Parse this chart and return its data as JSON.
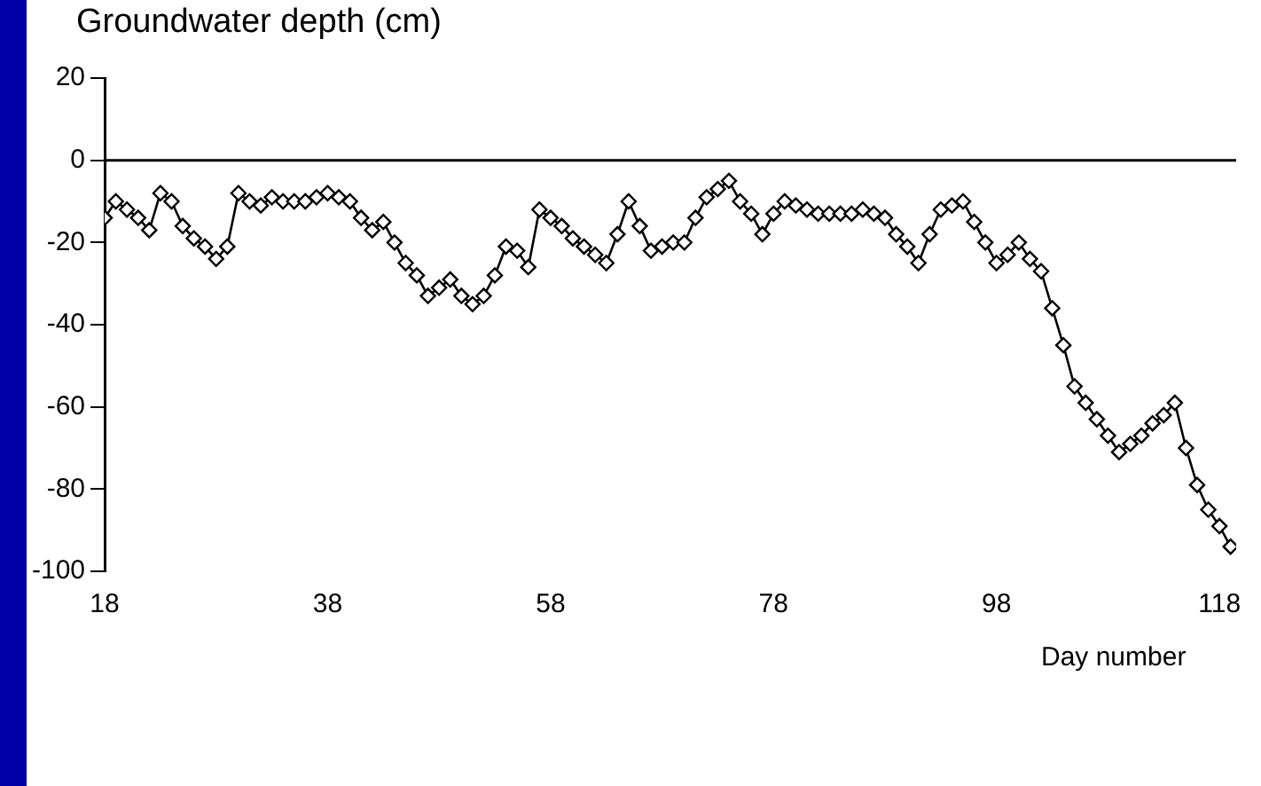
{
  "chart_data": {
    "type": "line",
    "ylabel": "Groundwater depth (cm)",
    "xlabel": "Day number",
    "x": [
      18,
      19,
      20,
      21,
      22,
      23,
      24,
      25,
      26,
      27,
      28,
      29,
      30,
      31,
      32,
      33,
      34,
      35,
      36,
      37,
      38,
      39,
      40,
      41,
      42,
      43,
      44,
      45,
      46,
      47,
      48,
      49,
      50,
      51,
      52,
      53,
      54,
      55,
      56,
      57,
      58,
      59,
      60,
      61,
      62,
      63,
      64,
      65,
      66,
      67,
      68,
      69,
      70,
      71,
      72,
      73,
      74,
      75,
      76,
      77,
      78,
      79,
      80,
      81,
      82,
      83,
      84,
      85,
      86,
      87,
      88,
      89,
      90,
      91,
      92,
      93,
      94,
      95,
      96,
      97,
      98,
      99,
      100,
      101,
      102,
      103,
      104,
      105,
      106,
      107,
      108,
      109,
      110,
      111,
      112,
      113,
      114,
      115,
      116,
      117,
      118,
      119
    ],
    "series": [
      {
        "color": "#000000",
        "values": [
          -14,
          -10,
          -12,
          -14,
          -17,
          -8,
          -10,
          -16,
          -19,
          -21,
          -24,
          -21,
          -8,
          -10,
          -11,
          -9,
          -10,
          -10,
          -10,
          -9,
          -8,
          -9,
          -10,
          -14,
          -17,
          -15,
          -20,
          -25,
          -28,
          -33,
          -31,
          -29,
          -33,
          -35,
          -33,
          -28,
          -21,
          -22,
          -26,
          -12,
          -14,
          -16,
          -19,
          -21,
          -23,
          -25,
          -18,
          -10,
          -16,
          -22,
          -21,
          -20,
          -20,
          -14,
          -9,
          -7,
          -5,
          -10,
          -13,
          -18,
          -13,
          -10,
          -11,
          -12,
          -13,
          -13,
          -13,
          -13,
          -12,
          -13,
          -14,
          -18,
          -21,
          -25,
          -18,
          -12,
          -11,
          -10,
          -15,
          -20,
          -25,
          -23,
          -20,
          -24,
          -27,
          -36,
          -45,
          -55,
          -59,
          -63,
          -67,
          -71,
          -69,
          -67,
          -64,
          -62,
          -59,
          -70,
          -79,
          -85,
          -89,
          -94
        ]
      }
    ],
    "xlim": [
      18,
      119.5
    ],
    "xticks": [
      18,
      38,
      58,
      78,
      98,
      118
    ],
    "ylim": [
      -100,
      20
    ],
    "yticks": [
      -100,
      -80,
      -60,
      -40,
      -20,
      0,
      20
    ],
    "ref_lines": [
      {
        "axis": "y",
        "value": 0,
        "color": "#000000",
        "line_style": "solid"
      }
    ],
    "marker": "diamond",
    "line_style": "solid",
    "grid": false,
    "legend": false
  }
}
